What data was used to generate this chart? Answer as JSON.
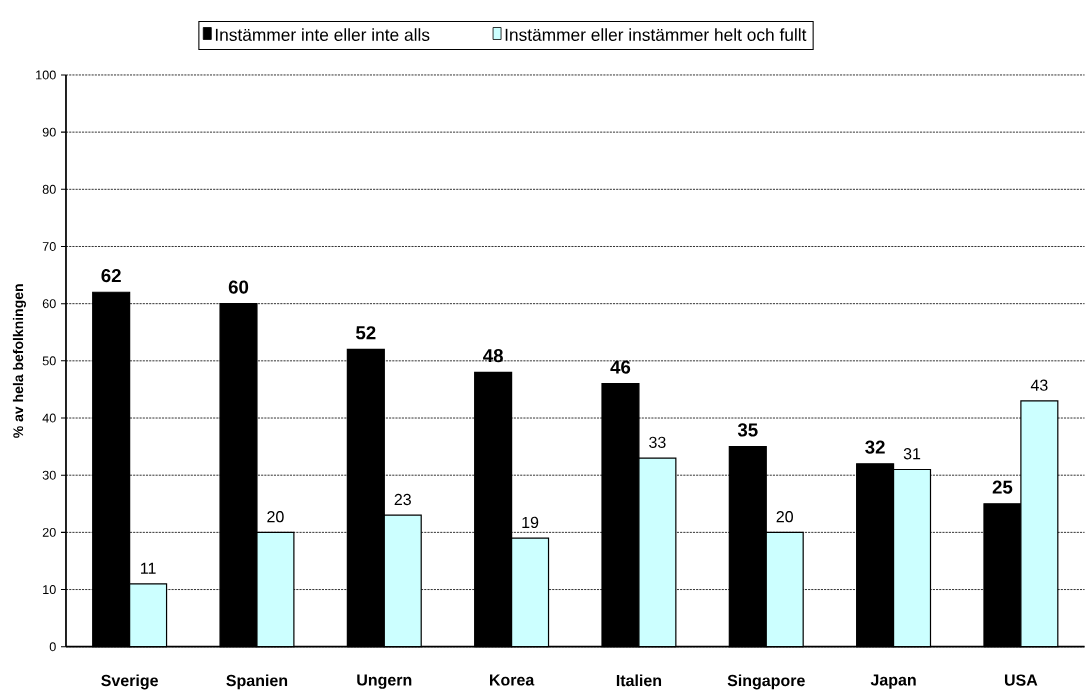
{
  "chart_data": {
    "type": "bar",
    "ylabel": "% av hela befolkningen",
    "categories": [
      "Sverige",
      "Spanien",
      "Ungern",
      "Korea",
      "Italien",
      "Singapore",
      "Japan",
      "USA"
    ],
    "series": [
      {
        "name": "Instämmer inte eller inte alls",
        "color": "#000000",
        "values": [
          62,
          60,
          52,
          48,
          46,
          35,
          32,
          25
        ]
      },
      {
        "name": "Instämmer eller instämmer helt och fullt",
        "color": "#ccffff",
        "values": [
          11,
          20,
          23,
          19,
          33,
          20,
          31,
          43
        ]
      }
    ],
    "ylim": [
      0,
      100
    ],
    "yticks": [
      0,
      10,
      20,
      30,
      40,
      50,
      60,
      70,
      80,
      90,
      100
    ],
    "grid": "y",
    "data_labels": true,
    "legend": "top"
  }
}
